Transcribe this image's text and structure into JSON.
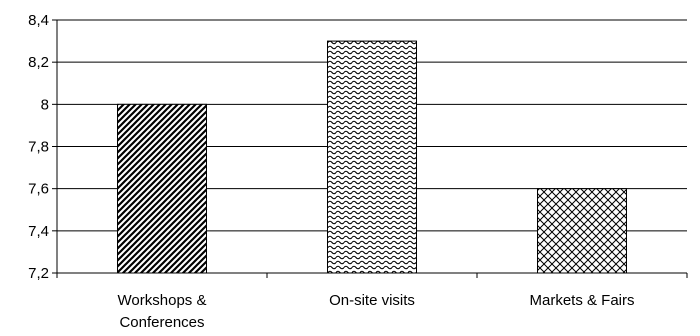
{
  "chart_data": {
    "type": "bar",
    "title": "",
    "xlabel": "",
    "ylabel": "",
    "ylim": [
      7.2,
      8.4
    ],
    "ytick_step": 0.2,
    "yticks": [
      "7,2",
      "7,4",
      "7,6",
      "7,8",
      "8",
      "8,2",
      "8,4"
    ],
    "grid": true,
    "legend": "none",
    "categories": [
      [
        "Workshops &",
        "Conferences"
      ],
      [
        "On-site visits"
      ],
      [
        "Markets & Fairs"
      ]
    ],
    "values": [
      8.0,
      8.3,
      7.6
    ],
    "patterns": [
      "diagonal-stripes",
      "wave",
      "crosshatch"
    ]
  }
}
